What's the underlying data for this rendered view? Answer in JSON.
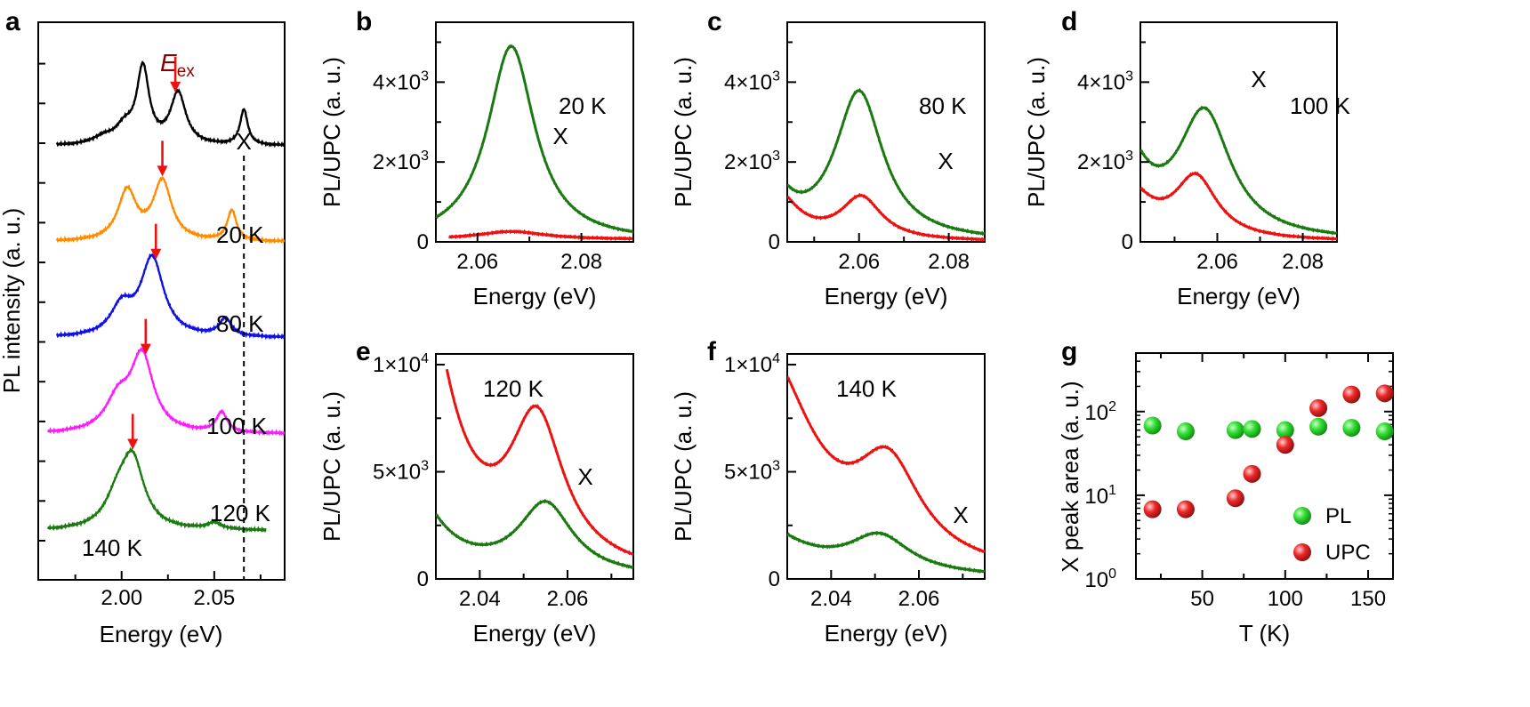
{
  "colors": {
    "black": "#000000",
    "orange": "#ff8c00",
    "blue": "#1010e0",
    "magenta": "#ff1aff",
    "green": "#1a7a10",
    "red": "#ee1111",
    "dark_red": "#8b0000",
    "pl_marker": "#22cc22",
    "upc_marker": "#dd2222"
  },
  "chart_data": [
    {
      "panel": "a",
      "type": "line",
      "xlabel": "Energy (eV)",
      "ylabel": "PL intensity (a. u.)",
      "xlim": [
        1.955,
        2.088
      ],
      "xticks": [
        2.0,
        2.05
      ],
      "xtick_labels": [
        "2.00",
        "2.05"
      ],
      "eex_label": "E",
      "eex_sub": "ex",
      "x_label": "X",
      "x_line_energy": 2.066,
      "series": [
        {
          "name": "black",
          "label": "",
          "color": "black",
          "offset": 5.4,
          "x0": 1.965,
          "x1": 2.088,
          "base": 0.02,
          "peaks": [
            [
              1.99,
              0.08,
              0.007
            ],
            [
              2.0015,
              0.2,
              0.006
            ],
            [
              2.0115,
              0.94,
              0.004
            ],
            [
              2.0305,
              0.64,
              0.005
            ],
            [
              2.066,
              0.44,
              0.0025
            ]
          ],
          "arrow": 2.029
        },
        {
          "name": "orange",
          "label": "20 K",
          "color": "orange",
          "offset": 4.2,
          "x0": 1.965,
          "x1": 2.088,
          "base": 0.02,
          "peaks": [
            [
              2.003,
              0.62,
              0.006
            ],
            [
              2.022,
              0.74,
              0.006
            ],
            [
              2.0595,
              0.38,
              0.003
            ]
          ],
          "arrow": 2.022
        },
        {
          "name": "blue",
          "label": "80 K",
          "color": "blue",
          "offset": 3.0,
          "x0": 1.965,
          "x1": 2.088,
          "base": 0.02,
          "peaks": [
            [
              2.0,
              0.35,
              0.007
            ],
            [
              2.0165,
              0.98,
              0.0075
            ],
            [
              2.056,
              0.22,
              0.004
            ]
          ],
          "arrow": 2.0185
        },
        {
          "name": "magenta",
          "label": "100 K",
          "color": "magenta",
          "offset": 1.8,
          "x0": 1.96,
          "x1": 2.088,
          "base": 0.02,
          "peaks": [
            [
              1.998,
              0.38,
              0.008
            ],
            [
              2.011,
              0.95,
              0.0075
            ],
            [
              2.054,
              0.25,
              0.0035
            ]
          ],
          "arrow": 2.013
        },
        {
          "name": "green",
          "label": "120 K",
          "color": "green",
          "offset": 0.6,
          "x0": 1.96,
          "x1": 2.078,
          "base": 0.01,
          "peaks": [
            [
              1.998,
              0.35,
              0.008
            ],
            [
              2.006,
              0.82,
              0.0075
            ],
            [
              2.05,
              0.08,
              0.005
            ]
          ],
          "arrow": 2.006
        }
      ],
      "temperature_labels": [
        "20 K",
        "80 K",
        "100 K",
        "120 K",
        "140 K"
      ]
    },
    {
      "panel": "b",
      "type": "line",
      "xlabel": "Energy (eV)",
      "ylabel": "PL/UPC (a. u.)",
      "xlim": [
        2.052,
        2.09
      ],
      "ylim": [
        0,
        5500
      ],
      "xticks": [
        2.06,
        2.08
      ],
      "xtick_labels": [
        "2.06",
        "2.08"
      ],
      "yticks": [
        0,
        2000,
        4000
      ],
      "ytick_labels": [
        "0",
        "2×10",
        "4×10"
      ],
      "ytick_exps": [
        "",
        "3",
        "3"
      ],
      "temp_label": "20 K",
      "x_label": "X",
      "series": [
        {
          "name": "PL",
          "color": "green",
          "x0": 2.052,
          "x1": 2.09,
          "base": 0,
          "peaks": [
            [
              2.0665,
              4900,
              0.0055
            ]
          ]
        },
        {
          "name": "UPC",
          "color": "red",
          "x0": 2.0545,
          "x1": 2.09,
          "base": 60,
          "peaks": [
            [
              2.0665,
              200,
              0.008
            ]
          ]
        }
      ]
    },
    {
      "panel": "c",
      "type": "line",
      "xlabel": "Energy (eV)",
      "ylabel": "PL/UPC (a. u.)",
      "xlim": [
        2.044,
        2.088
      ],
      "ylim": [
        0,
        5500
      ],
      "xticks": [
        2.06,
        2.08
      ],
      "xtick_labels": [
        "2.06",
        "2.08"
      ],
      "yticks": [
        0,
        2000,
        4000
      ],
      "ytick_labels": [
        "0",
        "2×10",
        "4×10"
      ],
      "ytick_exps": [
        "",
        "3",
        "3"
      ],
      "temp_label": "80 K",
      "x_label": "X",
      "series": [
        {
          "name": "PL",
          "color": "green",
          "x0": 2.044,
          "x1": 2.088,
          "base": 0,
          "peaks": [
            [
              2.04,
              1500,
              0.005
            ],
            [
              2.06,
              3700,
              0.0065
            ]
          ]
        },
        {
          "name": "UPC",
          "color": "red",
          "x0": 2.044,
          "x1": 2.088,
          "base": 0,
          "peaks": [
            [
              2.041,
              1300,
              0.006
            ],
            [
              2.0605,
              1050,
              0.0055
            ]
          ]
        }
      ]
    },
    {
      "panel": "d",
      "type": "line",
      "xlabel": "Energy (eV)",
      "ylabel": "PL/UPC (a. u.)",
      "xlim": [
        2.042,
        2.088
      ],
      "ylim": [
        0,
        5500
      ],
      "xticks": [
        2.06,
        2.08
      ],
      "xtick_labels": [
        "2.06",
        "2.08"
      ],
      "yticks": [
        0,
        2000,
        4000
      ],
      "ytick_labels": [
        "0",
        "2×10",
        "4×10"
      ],
      "ytick_exps": [
        "",
        "3",
        "3"
      ],
      "temp_label": "100 K",
      "x_label": "X",
      "series": [
        {
          "name": "PL",
          "color": "green",
          "x0": 2.042,
          "x1": 2.088,
          "base": 0,
          "peaks": [
            [
              2.037,
              2700,
              0.0065
            ],
            [
              2.057,
              3100,
              0.0075
            ]
          ]
        },
        {
          "name": "UPC",
          "color": "red",
          "x0": 2.042,
          "x1": 2.088,
          "base": 0,
          "peaks": [
            [
              2.038,
              1450,
              0.007
            ],
            [
              2.055,
              1500,
              0.006
            ]
          ]
        }
      ]
    },
    {
      "panel": "e",
      "type": "line",
      "xlabel": "Energy (eV)",
      "ylabel": "PL/UPC (a. u.)",
      "xlim": [
        2.03,
        2.075
      ],
      "ylim": [
        0,
        10500
      ],
      "xticks": [
        2.04,
        2.06
      ],
      "xtick_labels": [
        "2.04",
        "2.06"
      ],
      "yticks": [
        0,
        5000,
        10000
      ],
      "ytick_labels": [
        "0",
        "5×10",
        "1×10"
      ],
      "ytick_exps": [
        "",
        "3",
        "4"
      ],
      "temp_label": "120 K",
      "x_label": "X",
      "series": [
        {
          "name": "PL",
          "color": "green",
          "x0": 2.03,
          "x1": 2.075,
          "base": 0,
          "peaks": [
            [
              2.022,
              5200,
              0.0085
            ],
            [
              2.055,
              3300,
              0.0075
            ]
          ]
        },
        {
          "name": "UPC",
          "color": "red",
          "x0": 2.0325,
          "x1": 2.075,
          "base": 0,
          "peaks": [
            [
              2.025,
              16000,
              0.0085
            ],
            [
              2.053,
              6700,
              0.0075
            ]
          ]
        }
      ]
    },
    {
      "panel": "f",
      "type": "line",
      "xlabel": "Energy (eV)",
      "ylabel": "PL/UPC (a. u.)",
      "xlim": [
        2.03,
        2.075
      ],
      "ylim": [
        0,
        10500
      ],
      "xticks": [
        2.04,
        2.06
      ],
      "xtick_labels": [
        "2.04",
        "2.06"
      ],
      "yticks": [
        0,
        5000,
        10000
      ],
      "ytick_labels": [
        "0",
        "5×10",
        "1×10"
      ],
      "ytick_exps": [
        "",
        "3",
        "4"
      ],
      "temp_label": "140 K",
      "x_label": "X",
      "series": [
        {
          "name": "PL",
          "color": "green",
          "x0": 2.03,
          "x1": 2.075,
          "base": 0,
          "peaks": [
            [
              2.02,
              2950,
              0.013
            ],
            [
              2.051,
              1700,
              0.0085
            ]
          ]
        },
        {
          "name": "UPC",
          "color": "red",
          "x0": 2.03,
          "x1": 2.075,
          "base": 0,
          "peaks": [
            [
              2.025,
              10200,
              0.013
            ],
            [
              2.053,
              4300,
              0.009
            ]
          ]
        }
      ]
    },
    {
      "panel": "g",
      "type": "scatter",
      "xlabel": "T (K)",
      "ylabel": "X peak area (a. u.)",
      "xlim": [
        10,
        165
      ],
      "ylog": true,
      "ylim": [
        1,
        500
      ],
      "xticks": [
        50,
        100,
        150
      ],
      "xtick_labels": [
        "50",
        "100",
        "150"
      ],
      "yticks": [
        1,
        10,
        100
      ],
      "ytick_bases": [
        "10",
        "10",
        "10"
      ],
      "ytick_exps": [
        "0",
        "1",
        "2"
      ],
      "series": [
        {
          "name": "PL",
          "color": "pl_marker",
          "x": [
            20,
            40,
            70,
            80,
            100,
            120,
            140,
            160
          ],
          "y": [
            68,
            58,
            60,
            62,
            60,
            66,
            64,
            58
          ]
        },
        {
          "name": "UPC",
          "color": "upc_marker",
          "x": [
            20,
            40,
            70,
            80,
            100,
            120,
            140,
            160
          ],
          "y": [
            6.8,
            6.8,
            9.2,
            18,
            40,
            110,
            160,
            165
          ]
        }
      ],
      "legend": [
        "PL",
        "UPC"
      ]
    }
  ]
}
